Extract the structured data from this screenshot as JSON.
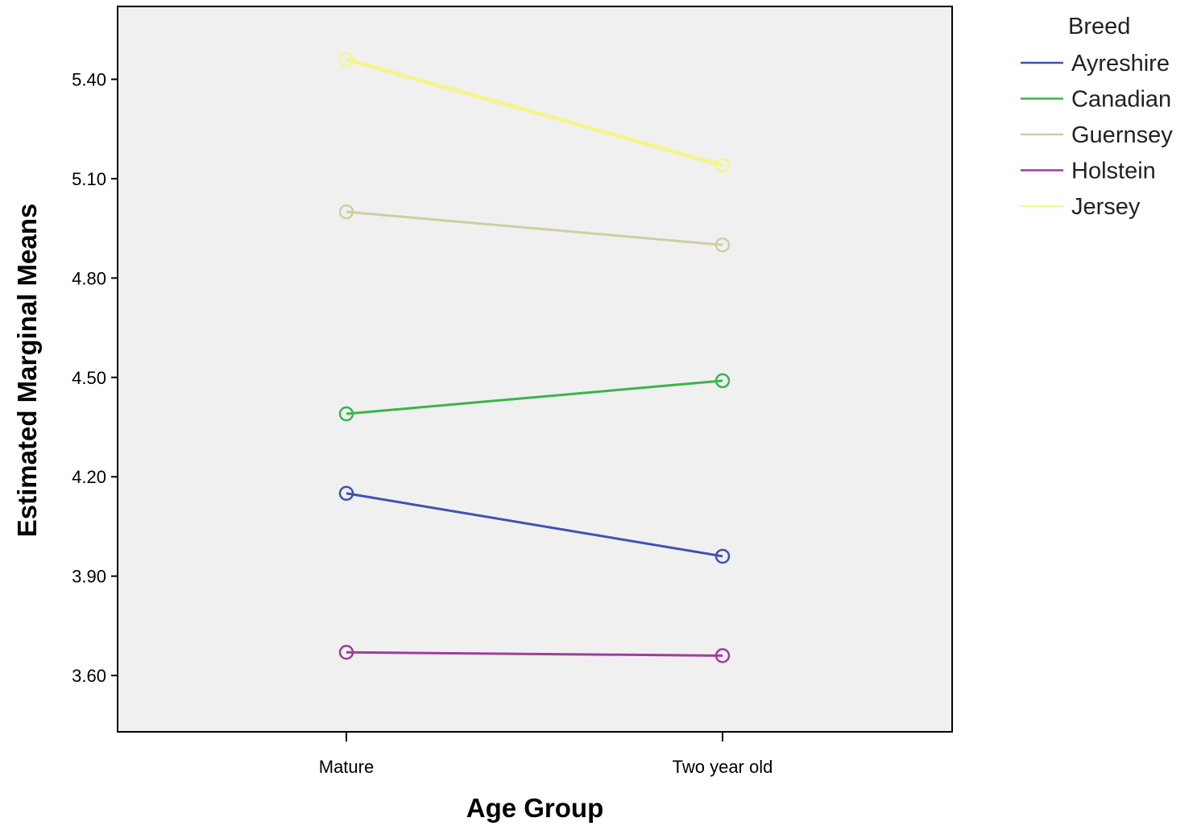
{
  "chart_data": {
    "type": "line",
    "xlabel": "Age Group",
    "ylabel": "Estimated Marginal Means",
    "categories": [
      "Mature",
      "Two year old"
    ],
    "ylim": [
      3.43,
      5.62
    ],
    "yticks": [
      3.6,
      3.9,
      4.2,
      4.5,
      4.8,
      5.1,
      5.4
    ],
    "ytick_labels": [
      "3.60",
      "3.90",
      "4.20",
      "4.50",
      "4.80",
      "5.10",
      "5.40"
    ],
    "grid": false,
    "legend": {
      "title": "Breed",
      "position": "right"
    },
    "markers": "open-circle",
    "series": [
      {
        "name": "Ayreshire",
        "values": [
          4.15,
          3.96
        ],
        "color": "#3f51b5"
      },
      {
        "name": "Canadian",
        "values": [
          4.39,
          4.49
        ],
        "color": "#39b54a"
      },
      {
        "name": "Guernsey",
        "values": [
          5.0,
          4.9
        ],
        "color": "#cfcfa0"
      },
      {
        "name": "Holstein",
        "values": [
          3.67,
          3.66
        ],
        "color": "#a03ca0"
      },
      {
        "name": "Jersey",
        "values": [
          5.46,
          5.14
        ],
        "color": "#f5f590"
      }
    ]
  }
}
